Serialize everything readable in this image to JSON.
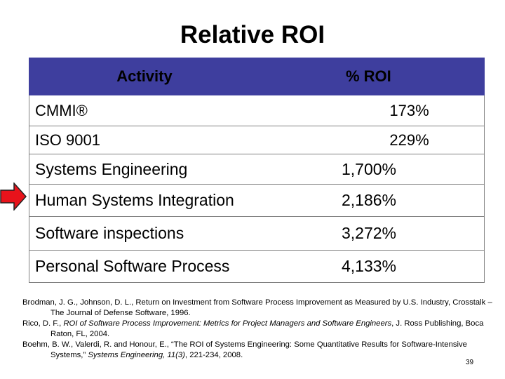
{
  "slide": {
    "title": "Relative ROI",
    "page_number": "39"
  },
  "table": {
    "headers": {
      "activity": "Activity",
      "roi": "% ROI"
    },
    "rows": [
      {
        "activity": "CMMI®",
        "roi": "173%"
      },
      {
        "activity": "ISO 9001",
        "roi": "229%"
      },
      {
        "activity": "Systems Engineering",
        "roi": "1,700%"
      },
      {
        "activity": "Human Systems Integration",
        "roi": "2,186%"
      },
      {
        "activity": "Software inspections",
        "roi": "3,272%"
      },
      {
        "activity": "Personal Software Process",
        "roi": "4,133%"
      }
    ]
  },
  "references": [
    {
      "authors": "Brodman, J. G., Johnson, D. L., ",
      "title": "Return on Investment from Software Process Improvement as Measured by U.S. Industry, Crosstalk – The Journal of Defense Software, 1996."
    },
    {
      "authors": "Rico, D. F., ",
      "title": "ROI of Software Process Improvement: Metrics for Project Managers and Software Engineers",
      "rest": ", J. Ross Publishing, Boca Raton, FL, 2004."
    },
    {
      "authors": "Boehm, B. W., Valerdi, R. and Honour, E., ",
      "title": "“The ROI of Systems Engineering: Some Quantitative Results for Software-Intensive Systems,” ",
      "journal": "Systems Engineering, 11(3)",
      "rest": ", 221-234, 2008."
    }
  ],
  "colors": {
    "header_bg": "#3e3e9e",
    "arrow_fill": "#e8131b"
  }
}
